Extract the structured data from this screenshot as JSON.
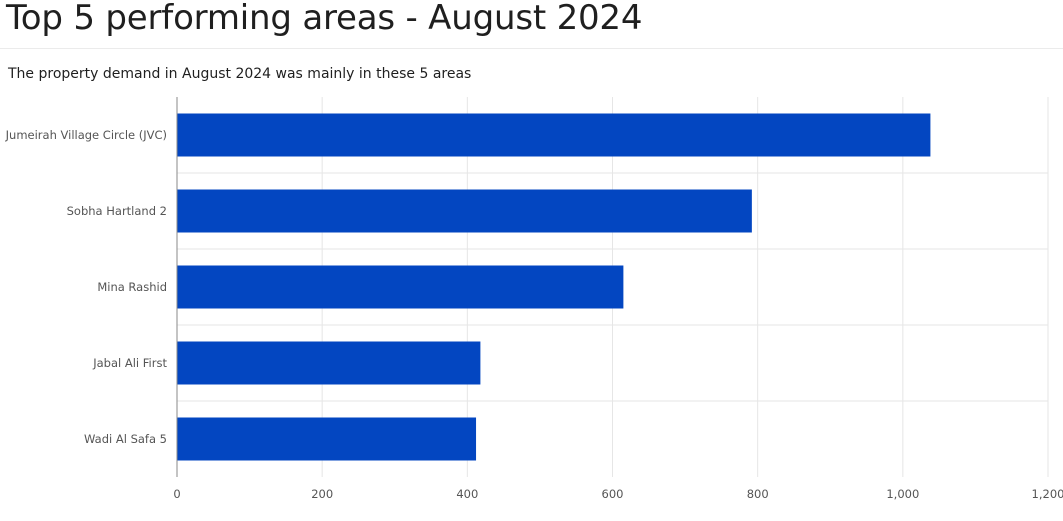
{
  "page": {
    "title": "Top 5 performing areas - August 2024"
  },
  "chart_data": {
    "type": "bar",
    "orientation": "horizontal",
    "title": "",
    "subtitle": "The property demand in August 2024 was mainly in these 5 areas",
    "categories": [
      "Jumeirah Village Circle (JVC)",
      "Sobha Hartland 2",
      "Mina Rashid",
      "Jabal Ali First",
      "Wadi Al Safa 5"
    ],
    "values": [
      1038,
      792,
      615,
      418,
      412
    ],
    "xlim": [
      0,
      1200
    ],
    "xticks": [
      0,
      200,
      400,
      600,
      800,
      1000,
      1200
    ],
    "xtick_labels": [
      "0",
      "200",
      "400",
      "600",
      "800",
      "1,000",
      "1,200"
    ],
    "xlabel": "",
    "ylabel": "",
    "grid": true,
    "legend": "none",
    "bar_color": "#0346c1"
  }
}
